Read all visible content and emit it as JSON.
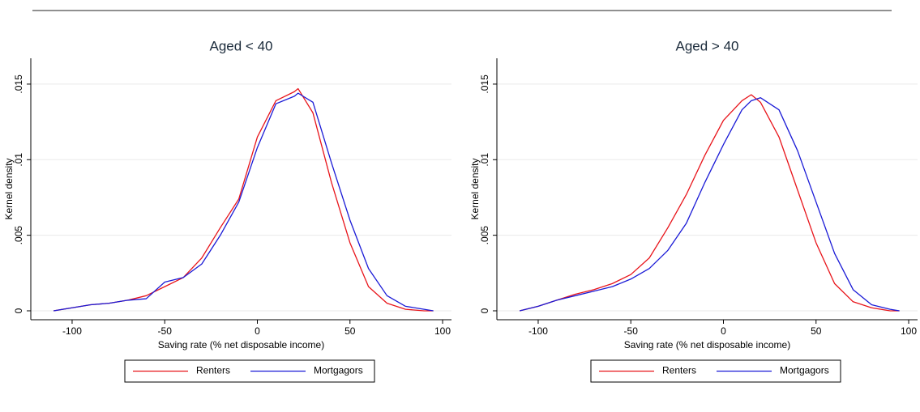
{
  "chart_data": [
    {
      "type": "line",
      "title": "Aged < 40",
      "x_label": "Saving rate (% net disposable income)",
      "y_label": "Kernel density",
      "x": [
        -110,
        -100,
        -90,
        -80,
        -70,
        -60,
        -50,
        -40,
        -30,
        -20,
        -10,
        0,
        10,
        20,
        22,
        30,
        40,
        50,
        60,
        70,
        80,
        90,
        95
      ],
      "series": [
        {
          "name": "Renters",
          "color": "#e8141a",
          "values": [
            0,
            0.0002,
            0.0004,
            0.0005,
            0.0007,
            0.001,
            0.0016,
            0.0022,
            0.0035,
            0.0055,
            0.0074,
            0.0115,
            0.0139,
            0.0145,
            0.0147,
            0.0131,
            0.0085,
            0.0045,
            0.0016,
            0.0005,
            0.0001,
            0,
            0
          ]
        },
        {
          "name": "Mortgagors",
          "color": "#1a1ad6",
          "values": [
            0,
            0.0002,
            0.0004,
            0.0005,
            0.0007,
            0.0008,
            0.0019,
            0.0022,
            0.0031,
            0.005,
            0.0072,
            0.0108,
            0.0137,
            0.0142,
            0.0144,
            0.0138,
            0.0098,
            0.006,
            0.0028,
            0.001,
            0.0003,
            0.0001,
            0
          ]
        }
      ],
      "xlim": [
        -122.3,
        104.8
      ],
      "ylim": [
        -0.00059,
        0.01671
      ],
      "xticks": [
        -100,
        -50,
        0,
        50,
        100
      ],
      "yticks": [
        0,
        {
          "value": 0.005,
          "label": ".005"
        },
        {
          "value": 0.01,
          "label": ".01"
        },
        {
          "value": 0.015,
          "label": ".015"
        }
      ],
      "grid": true,
      "legend": "bottom"
    },
    {
      "type": "line",
      "title": "Aged > 40",
      "x_label": "Saving rate (% net disposable income)",
      "y_label": "Kernel density",
      "x": [
        -110,
        -100,
        -90,
        -80,
        -70,
        -60,
        -50,
        -40,
        -30,
        -20,
        -10,
        0,
        10,
        15,
        20,
        30,
        40,
        50,
        60,
        70,
        80,
        90,
        95
      ],
      "series": [
        {
          "name": "Renters",
          "color": "#e8141a",
          "values": [
            0,
            0.0003,
            0.0007,
            0.0011,
            0.0014,
            0.0018,
            0.0024,
            0.0035,
            0.0055,
            0.0077,
            0.0103,
            0.0126,
            0.0139,
            0.0143,
            0.0138,
            0.0115,
            0.008,
            0.0045,
            0.0018,
            0.0006,
            0.0002,
            0,
            0
          ]
        },
        {
          "name": "Mortgagors",
          "color": "#1a1ad6",
          "values": [
            0,
            0.0003,
            0.0007,
            0.001,
            0.0013,
            0.0016,
            0.0021,
            0.0028,
            0.004,
            0.0058,
            0.0085,
            0.011,
            0.0133,
            0.0139,
            0.0141,
            0.0133,
            0.0106,
            0.0072,
            0.0038,
            0.0014,
            0.0004,
            0.0001,
            0
          ]
        }
      ],
      "xlim": [
        -122.3,
        104.8
      ],
      "ylim": [
        -0.00059,
        0.01671
      ],
      "xticks": [
        -100,
        -50,
        0,
        50,
        100
      ],
      "yticks": [
        0,
        {
          "value": 0.005,
          "label": ".005"
        },
        {
          "value": 0.01,
          "label": ".01"
        },
        {
          "value": 0.015,
          "label": ".015"
        }
      ],
      "grid": true,
      "legend": "bottom"
    }
  ]
}
